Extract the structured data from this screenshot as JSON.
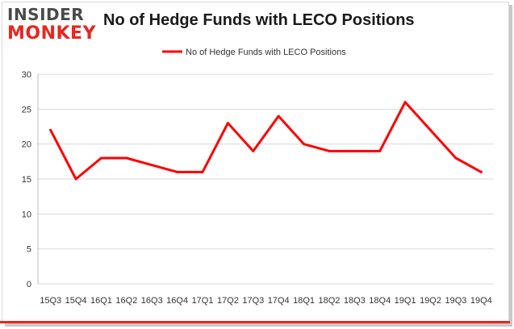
{
  "logo": {
    "top": "INSIDER",
    "bottom": "MONKEY"
  },
  "chart_data": {
    "type": "line",
    "title": "No of Hedge Funds with LECO Positions",
    "categories": [
      "15Q3",
      "15Q4",
      "16Q1",
      "16Q2",
      "16Q3",
      "16Q4",
      "17Q1",
      "17Q2",
      "17Q3",
      "17Q4",
      "18Q1",
      "18Q2",
      "18Q3",
      "18Q4",
      "19Q1",
      "19Q2",
      "19Q3",
      "19Q4"
    ],
    "series": [
      {
        "name": "No of Hedge Funds with LECO Positions",
        "values": [
          22,
          15,
          18,
          18,
          17,
          16,
          16,
          23,
          19,
          24,
          20,
          19,
          19,
          19,
          26,
          22,
          18,
          16
        ],
        "color": "#ff0000"
      }
    ],
    "ylim": [
      0,
      30
    ],
    "yticks": [
      0,
      5,
      10,
      15,
      20,
      25,
      30
    ],
    "grid": true,
    "legend_position": "top-center"
  }
}
